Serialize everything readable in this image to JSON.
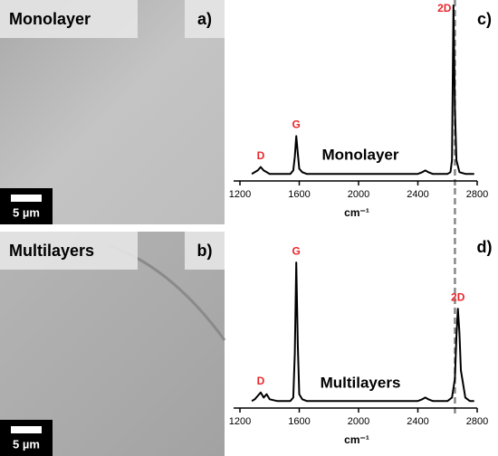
{
  "panels": [
    {
      "title": "Monolayer",
      "letter": "a)",
      "scale": "5 µm"
    },
    {
      "title": "Multilayers",
      "letter": "b)",
      "scale": "5 µm"
    }
  ],
  "chart_data": [
    {
      "type": "line",
      "panel_label": "c)",
      "label": "Monolayer",
      "xlabel": "cm⁻¹",
      "x": [
        1280,
        1300,
        1320,
        1340,
        1360,
        1380,
        1400,
        1450,
        1500,
        1540,
        1560,
        1570,
        1580,
        1590,
        1600,
        1620,
        1650,
        1700,
        1800,
        1900,
        2000,
        2100,
        2200,
        2300,
        2400,
        2430,
        2450,
        2470,
        2500,
        2550,
        2600,
        2620,
        2630,
        2640,
        2650,
        2660,
        2680,
        2720,
        2750,
        2780
      ],
      "values": [
        2,
        3,
        4,
        6,
        4,
        3,
        2,
        2,
        2,
        2,
        4,
        12,
        24,
        14,
        5,
        3,
        2,
        2,
        2,
        2,
        2,
        2,
        2,
        2,
        2,
        3,
        4,
        3,
        2,
        2,
        2,
        3,
        10,
        100,
        40,
        10,
        3,
        2,
        2,
        2
      ],
      "color": "#000000",
      "xlim": [
        1200,
        2800
      ],
      "xticks": [
        1200,
        1600,
        2000,
        2400,
        2800
      ],
      "ylim": [
        0,
        100
      ],
      "annotations": [
        {
          "text": "D",
          "x": 1340
        },
        {
          "text": "G",
          "x": 1580
        },
        {
          "text": "2D",
          "x": 2640
        }
      ],
      "annotation_color": "#e8262b",
      "vline": 2650
    },
    {
      "type": "line",
      "panel_label": "d)",
      "label": "Multilayers",
      "xlabel": "cm⁻¹",
      "x": [
        1280,
        1300,
        1320,
        1340,
        1360,
        1380,
        1400,
        1450,
        1500,
        1540,
        1560,
        1570,
        1580,
        1590,
        1600,
        1620,
        1650,
        1700,
        1800,
        1900,
        2000,
        2100,
        2200,
        2300,
        2400,
        2430,
        2450,
        2470,
        2500,
        2550,
        2600,
        2630,
        2650,
        2660,
        2670,
        2680,
        2690,
        2720,
        2750,
        2780
      ],
      "values": [
        2,
        3,
        5,
        7,
        4,
        6,
        3,
        2,
        2,
        2,
        4,
        30,
        83,
        35,
        6,
        3,
        2,
        2,
        2,
        2,
        2,
        2,
        2,
        2,
        2,
        3,
        4,
        3,
        2,
        2,
        2,
        4,
        15,
        40,
        56,
        42,
        20,
        4,
        2,
        2
      ],
      "color": "#000000",
      "xlim": [
        1200,
        2800
      ],
      "xticks": [
        1200,
        1600,
        2000,
        2400,
        2800
      ],
      "ylim": [
        0,
        100
      ],
      "annotations": [
        {
          "text": "D",
          "x": 1340
        },
        {
          "text": "G",
          "x": 1580
        },
        {
          "text": "2D",
          "x": 2670
        }
      ],
      "annotation_color": "#e8262b",
      "vline": 2650
    }
  ]
}
